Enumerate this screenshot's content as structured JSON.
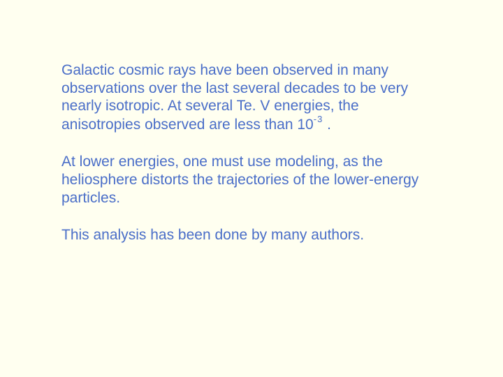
{
  "slide": {
    "background_color": "#fffff0",
    "text_color": "#4a6ec8",
    "font_family": "Arial",
    "font_size_pt": 16,
    "paragraphs": {
      "p1_pre": "Galactic cosmic rays have been observed in many observations over the last several decades to be very nearly isotropic.  At several Te. V energies, the anisotropies observed are less than 10",
      "p1_sup": "-3",
      "p1_post": "  .",
      "p2": "At lower energies, one must use modeling, as the heliosphere distorts the trajectories of the lower-energy particles.",
      "p3": "This analysis has been done by many authors."
    }
  }
}
